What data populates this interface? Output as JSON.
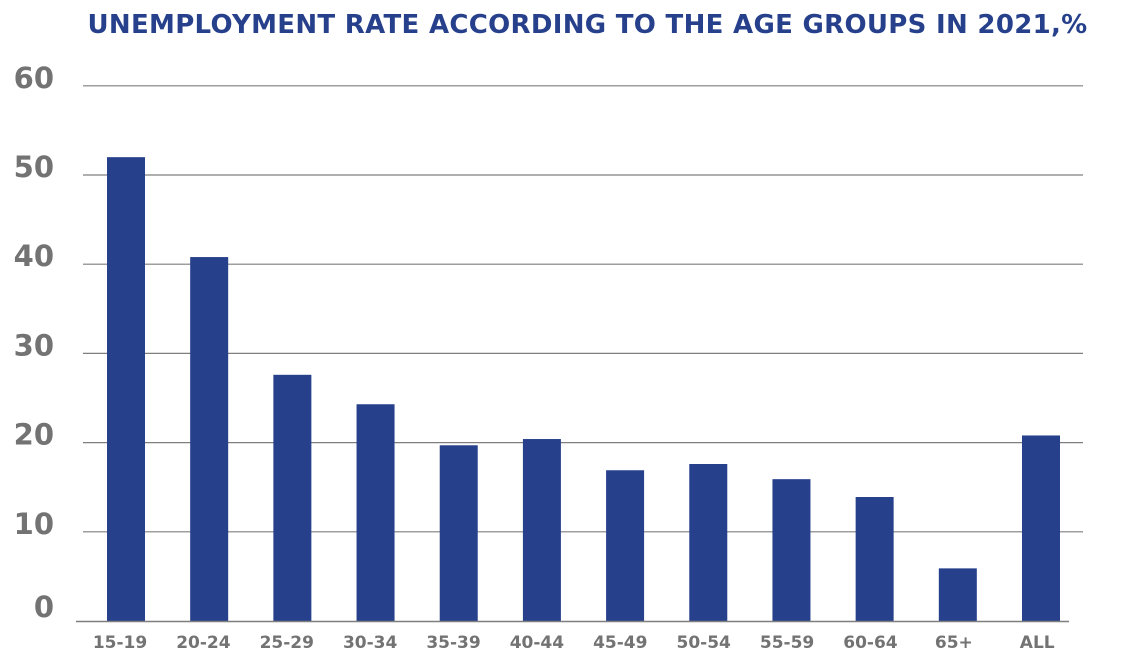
{
  "chart_data": {
    "type": "bar",
    "title": "UNEMPLOYMENT RATE ACCORDING TO THE AGE GROUPS IN 2021,%",
    "xlabel": "",
    "ylabel": "",
    "categories": [
      "15-19",
      "20-24",
      "25-29",
      "30-34",
      "35-39",
      "40-44",
      "45-49",
      "50-54",
      "55-59",
      "60-64",
      "65+",
      "ALL"
    ],
    "values": [
      52.0,
      40.8,
      27.6,
      24.3,
      19.7,
      20.4,
      16.9,
      17.6,
      15.9,
      13.9,
      5.9,
      20.8
    ],
    "ylim": [
      0,
      60
    ],
    "yticks": [
      "0",
      "10",
      "20",
      "30",
      "40",
      "50",
      "60"
    ],
    "grid": true,
    "legend": "none",
    "colors": {
      "bar": "#26408c",
      "title": "#26408c",
      "tick_text": "#737373",
      "grid": "#7f7f7f"
    }
  }
}
